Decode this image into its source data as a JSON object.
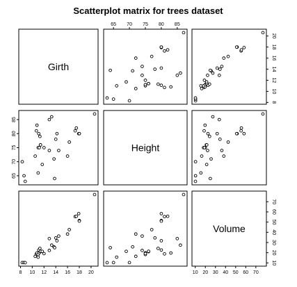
{
  "chart_data": {
    "type": "scatter",
    "title": "Scatterplot matrix for trees dataset",
    "variables": [
      "Girth",
      "Height",
      "Volume"
    ],
    "ranges": {
      "Girth": [
        8.3,
        20.6
      ],
      "Height": [
        63,
        87
      ],
      "Volume": [
        10.2,
        77
      ]
    },
    "ticks": {
      "Girth": [
        8,
        10,
        12,
        14,
        16,
        18,
        20
      ],
      "Height": [
        65,
        70,
        75,
        80,
        85
      ],
      "Volume": [
        10,
        20,
        30,
        40,
        50,
        60,
        70
      ]
    },
    "data": {
      "Girth": [
        8.3,
        8.6,
        8.8,
        10.5,
        10.7,
        10.8,
        11.0,
        11.0,
        11.1,
        11.2,
        11.3,
        11.4,
        11.4,
        11.7,
        12.0,
        12.9,
        12.9,
        13.3,
        13.7,
        13.8,
        14.0,
        14.2,
        14.5,
        16.0,
        16.3,
        17.3,
        17.5,
        17.9,
        18.0,
        18.0,
        20.6
      ],
      "Height": [
        70,
        65,
        63,
        72,
        81,
        83,
        66,
        75,
        80,
        75,
        79,
        76,
        76,
        69,
        75,
        74,
        85,
        86,
        71,
        64,
        78,
        80,
        74,
        72,
        77,
        81,
        82,
        80,
        80,
        80,
        87
      ],
      "Volume": [
        10.3,
        10.3,
        10.2,
        16.4,
        18.8,
        19.7,
        15.6,
        18.2,
        22.6,
        19.9,
        24.2,
        21.0,
        21.4,
        21.3,
        19.1,
        22.2,
        33.8,
        27.4,
        25.7,
        24.9,
        34.5,
        31.7,
        36.3,
        38.3,
        42.6,
        55.4,
        55.7,
        58.3,
        51.5,
        51.0,
        77.0
      ]
    }
  }
}
